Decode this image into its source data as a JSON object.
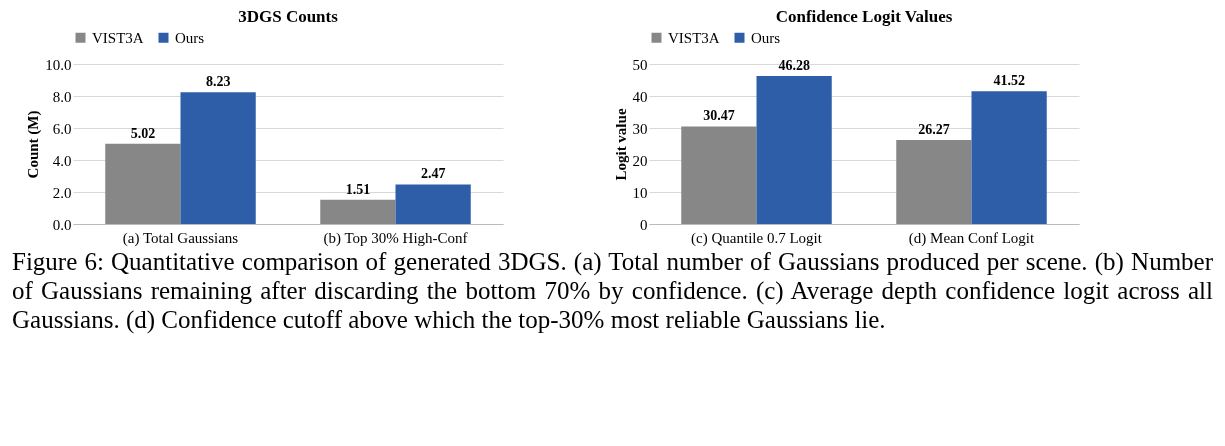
{
  "chart_data": [
    {
      "type": "bar",
      "title": "3DGS Counts",
      "ylabel": "Count (M)",
      "categories": [
        "(a) Total Gaussians",
        "(b) Top 30% High-Conf"
      ],
      "series": [
        {
          "name": "VIST3A",
          "color": "#878787",
          "values": [
            5.02,
            1.51
          ]
        },
        {
          "name": "Ours",
          "color": "#2e5ea8",
          "values": [
            8.23,
            2.47
          ]
        }
      ],
      "ylim": [
        0,
        10
      ],
      "yticks": [
        {
          "value": 0,
          "label": "0.0"
        },
        {
          "value": 2,
          "label": "2.0"
        },
        {
          "value": 4,
          "label": "4.0"
        },
        {
          "value": 6,
          "label": "6.0"
        },
        {
          "value": 8,
          "label": "8.0"
        },
        {
          "value": 10,
          "label": "10.0"
        }
      ],
      "grid": "y",
      "legend": "top",
      "data_labels": true,
      "annotations": [
        "Figure 6: Quantitative comparison of generated 3DGS. (a) Total number of Gaussians produced per scene. (b) Number of Gaussians remaining after discarding the bottom 70% by confidence. (c) Average depth confidence logit across all Gaussians. (d) Confidence cutoff above which the top-30% most reliable Gaussians lie."
      ]
    },
    {
      "type": "bar",
      "title": "Confidence Logit Values",
      "ylabel": "Logit value",
      "categories": [
        "(c) Quantile 0.7 Logit",
        "(d) Mean Conf Logit"
      ],
      "series": [
        {
          "name": "VIST3A",
          "color": "#878787",
          "values": [
            30.47,
            26.27
          ]
        },
        {
          "name": "Ours",
          "color": "#2e5ea8",
          "values": [
            46.28,
            41.52
          ]
        }
      ],
      "ylim": [
        0,
        50
      ],
      "yticks": [
        0,
        10,
        20,
        30,
        40,
        50
      ],
      "grid": "y",
      "legend": "top",
      "data_labels": true
    }
  ]
}
